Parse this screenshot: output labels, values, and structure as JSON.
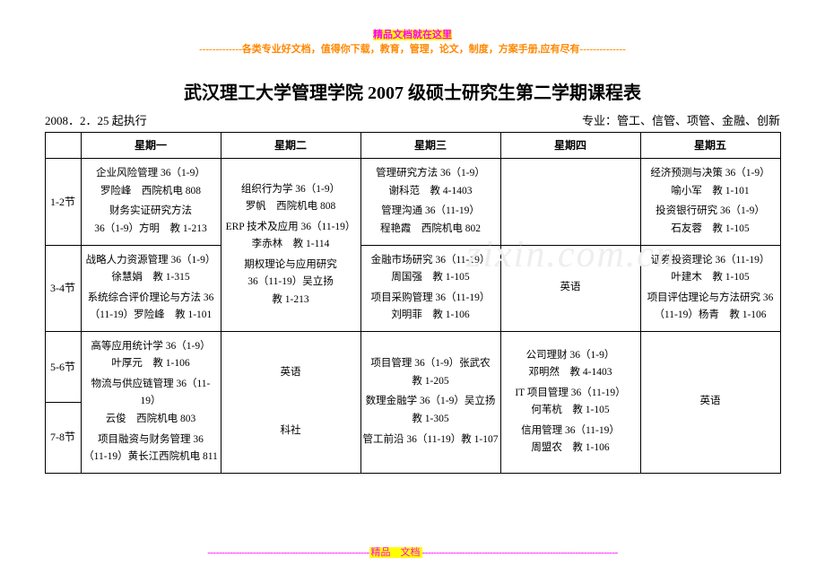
{
  "banner": {
    "line1": "精品文档就在这里",
    "line2": "-------------各类专业好文档，值得你下载，教育，管理，论文，制度，方案手册,应有尽有--------------"
  },
  "title": "武汉理工大学管理学院 2007 级硕士研究生第二学期课程表",
  "meta_left": "2008．2．25 起执行",
  "meta_right": "专业：管工、信管、项管、金融、创新",
  "headers": [
    "",
    "星期一",
    "星期二",
    "星期三",
    "星期四",
    "星期五"
  ],
  "periods": {
    "p12": "1-2节",
    "p34": "3-4节",
    "p56": "5-6节",
    "p78": "7-8节"
  },
  "cells": {
    "r12": {
      "mon": {
        "l1": "企业风险管理 36（1-9）",
        "l2": "罗险峰　西院机电 808",
        "l3": "",
        "l4": "财务实证研究方法",
        "l5": "36（1-9）方明　教 1-213"
      },
      "tue": {
        "l1": "组织行为学 36（1-9）",
        "l2": "罗帆　西院机电 808",
        "l3": "",
        "l4": "ERP 技术及应用 36（11-19）",
        "l5": "李赤林　教 1-114"
      },
      "wed": {
        "l1": "管理研究方法 36（1-9）",
        "l2": "谢科范　教 4-1403",
        "l3": "",
        "l4": "管理沟通 36（11-19）",
        "l5": "程艳霞　西院机电 802"
      },
      "thu": "",
      "fri": {
        "l1": "经济预测与决策 36（1-9）",
        "l2": "喻小军　教 1-101",
        "l3": "",
        "l4": "投资银行研究 36（1-9）",
        "l5": "石友蓉　教 1-105"
      }
    },
    "r34": {
      "mon": {
        "l1": "战略人力资源管理 36（1-9）",
        "l2": "徐慧娟　教 1-315",
        "l3": "",
        "l4": "系统综合评价理论与方法 36",
        "l5": "（11-19）罗险峰　教 1-101"
      },
      "tue": {
        "l1": "期权理论与应用研究",
        "l2": "36（11-19）吴立扬",
        "l3": "教 1-213"
      },
      "wed": {
        "l1": "金融市场研究 36（11-19）",
        "l2": "周国强　教 1-105",
        "l3": "",
        "l4": "项目采购管理 36（11-19）",
        "l5": "刘明菲　教 1-106"
      },
      "thu": "英语",
      "fri": {
        "l1": "证券投资理论 36（11-19）",
        "l2": "叶建木　教 1-105",
        "l3": "",
        "l4": "项目评估理论与方法研究 36",
        "l5": "（11-19）杨青　教 1-106"
      }
    },
    "r56": {
      "mon": {
        "l1": "高等应用统计学 36（1-9）",
        "l2": "叶厚元　教 1-106",
        "l3": "",
        "l4": "物流与供应链管理 36（11-19）",
        "l5": "云俊　西院机电 803"
      },
      "tue": "英语",
      "wed": {
        "l1": "项目管理 36（1-9）张武农",
        "l2": "教 1-205",
        "l3": "",
        "l4": "数理金融学 36（1-9）吴立扬",
        "l5": "教 1-305"
      },
      "thu": {
        "l1": "公司理财 36（1-9）",
        "l2": "邓明然　教 4-1403",
        "l3": "",
        "l4": "IT 项目管理 36（11-19）",
        "l5": "何苇杭　教 1-105"
      },
      "fri": "英语"
    },
    "r78": {
      "mon": {
        "l1": "项目融资与财务管理 36",
        "l2": "（11-19）黄长江西院机电 811"
      },
      "tue": "科社",
      "wed": {
        "l1": "管工前沿 36（11-19）教 1-107"
      },
      "thu": {
        "l1": "信用管理 36（11-19）",
        "l2": "周盟农　教 1-106"
      },
      "fri": ""
    }
  },
  "watermark": "zixin.com.cn",
  "footer_mid": "精品　文档"
}
